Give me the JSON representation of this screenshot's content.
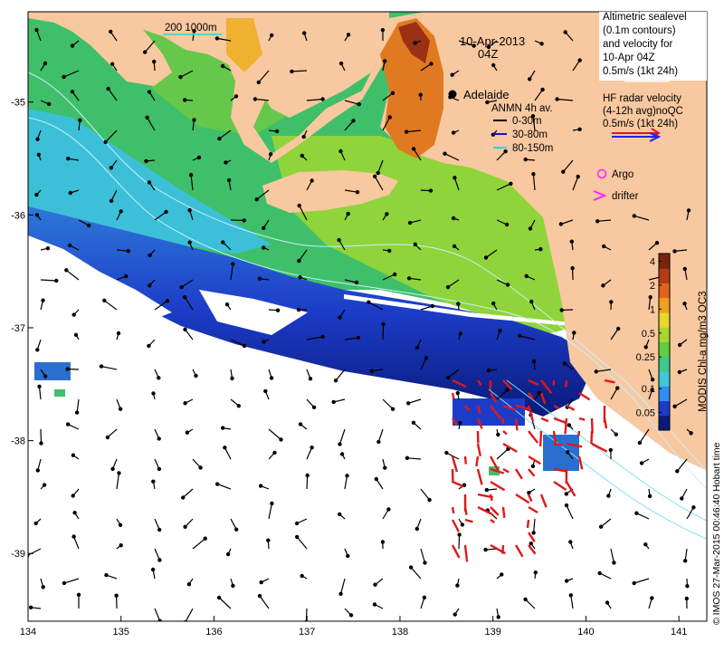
{
  "map": {
    "date_label": "10-Apr-2013",
    "time_label": "04Z",
    "city": "Adelaide",
    "scale_label": "200  1000m",
    "x_ticks": [
      "134",
      "135",
      "136",
      "137",
      "138",
      "139",
      "140",
      "141"
    ],
    "y_ticks": [
      "-35",
      "-36",
      "-37",
      "-38",
      "-39"
    ],
    "x_range": [
      134,
      141.3
    ],
    "y_range": [
      -39.6,
      -34.2
    ]
  },
  "legend_altimetry": {
    "lines": [
      "Altimetric sealevel",
      "(0.1m contours)",
      "and velocity for",
      "10-Apr 04Z",
      "0.5m/s (1kt 24h)"
    ]
  },
  "legend_hf": {
    "lines": [
      "HF radar velocity",
      "(4-12h avg)noQC",
      "0.5m/s (1kt 24h)"
    ]
  },
  "legend_anmn": {
    "title": "ANMN 4h av.",
    "items": [
      {
        "label": "0-30m",
        "color": "#000000"
      },
      {
        "label": "30-80m",
        "color": "#1010d0"
      },
      {
        "label": "80-150m",
        "color": "#30d0e0"
      }
    ]
  },
  "legend_markers": {
    "argo": "Argo",
    "drifter": "drifter",
    "marker_color": "#ff20ff"
  },
  "colorbar": {
    "label": "MODIS Chl-a mg/m3 OC3",
    "ticks": [
      "4",
      "2",
      "1",
      "0.5",
      "0.25",
      "0.1",
      "0.05"
    ],
    "tick_values": [
      4,
      2,
      1,
      0.5,
      0.25,
      0.1,
      0.05
    ],
    "range": [
      0.03,
      5
    ],
    "colors": [
      "#0a1a7a",
      "#1c3cc8",
      "#2e8ef0",
      "#3ec8d8",
      "#3cc890",
      "#5cd040",
      "#a8d830",
      "#e8d828",
      "#f0a020",
      "#e06418",
      "#b43c14",
      "#7a2410"
    ]
  },
  "credit": "© IMOS 27-Mar-2015 00:46:40 Hobart time",
  "colors": {
    "land": "#f8c8a0",
    "ocean_blank": "#ffffff",
    "hf_arrow": "#ff2020",
    "hf_arrow2": "#2020ff"
  }
}
